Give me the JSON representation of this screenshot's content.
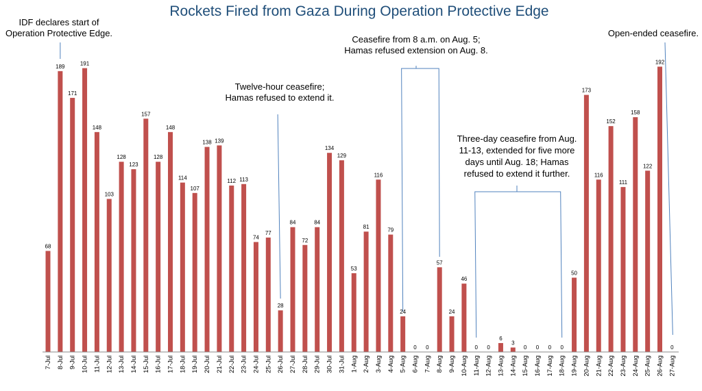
{
  "chart_data": {
    "type": "bar",
    "title": "Rockets Fired from Gaza During Operation Protective Edge",
    "xlabel": "",
    "ylabel": "",
    "ylim": [
      0,
      200
    ],
    "grid": false,
    "legend": "none",
    "bar_color": "#c0504d",
    "callout_color": "#4f81bd",
    "title_color": "#1f4e79",
    "categories": [
      "7-Jul",
      "8-Jul",
      "9-Jul",
      "10-Jul",
      "11-Jul",
      "12-Jul",
      "13-Jul",
      "14-Jul",
      "15-Jul",
      "16-Jul",
      "17-Jul",
      "18-Jul",
      "19-Jul",
      "20-Jul",
      "21-Jul",
      "22-Jul",
      "23-Jul",
      "24-Jul",
      "25-Jul",
      "26-Jul",
      "27-Jul",
      "28-Jul",
      "29-Jul",
      "30-Jul",
      "31-Jul",
      "1-Aug",
      "2-Aug",
      "3-Aug",
      "4-Aug",
      "5-Aug",
      "6-Aug",
      "7-Aug",
      "8-Aug",
      "9-Aug",
      "10-Aug",
      "11-Aug",
      "12-Aug",
      "13-Aug",
      "14-Aug",
      "15-Aug",
      "16-Aug",
      "17-Aug",
      "18-Aug",
      "19-Aug",
      "20-Aug",
      "21-Aug",
      "22-Aug",
      "23-Aug",
      "24-Aug",
      "25-Aug",
      "26-Aug",
      "27-Aug"
    ],
    "values": [
      68,
      189,
      171,
      191,
      148,
      103,
      128,
      123,
      157,
      128,
      148,
      114,
      107,
      138,
      139,
      112,
      113,
      74,
      77,
      28,
      84,
      72,
      84,
      134,
      129,
      53,
      81,
      116,
      79,
      24,
      0,
      0,
      57,
      24,
      46,
      0,
      0,
      6,
      3,
      0,
      0,
      0,
      0,
      50,
      173,
      116,
      152,
      111,
      158,
      122,
      192,
      0
    ],
    "annotations": [
      {
        "lines": [
          "IDF declares start of",
          "Operation Protective Edge."
        ],
        "points_to": [
          "8-Jul"
        ]
      },
      {
        "lines": [
          "Twelve-hour ceasefire;",
          "Hamas refused to extend it."
        ],
        "points_to": [
          "26-Jul"
        ]
      },
      {
        "lines": [
          "Ceasefire from 8 a.m. on Aug. 5;",
          "Hamas refused extension on Aug. 8."
        ],
        "points_to": [
          "5-Aug",
          "8-Aug"
        ]
      },
      {
        "lines": [
          "Three-day ceasefire from Aug.",
          "11-13, extended for five more",
          "days until Aug. 18; Hamas",
          "refused to extend it further."
        ],
        "points_to": [
          "11-Aug",
          "18-Aug"
        ]
      },
      {
        "lines": [
          "Open-ended ceasefire."
        ],
        "points_to": [
          "27-Aug"
        ]
      }
    ]
  }
}
